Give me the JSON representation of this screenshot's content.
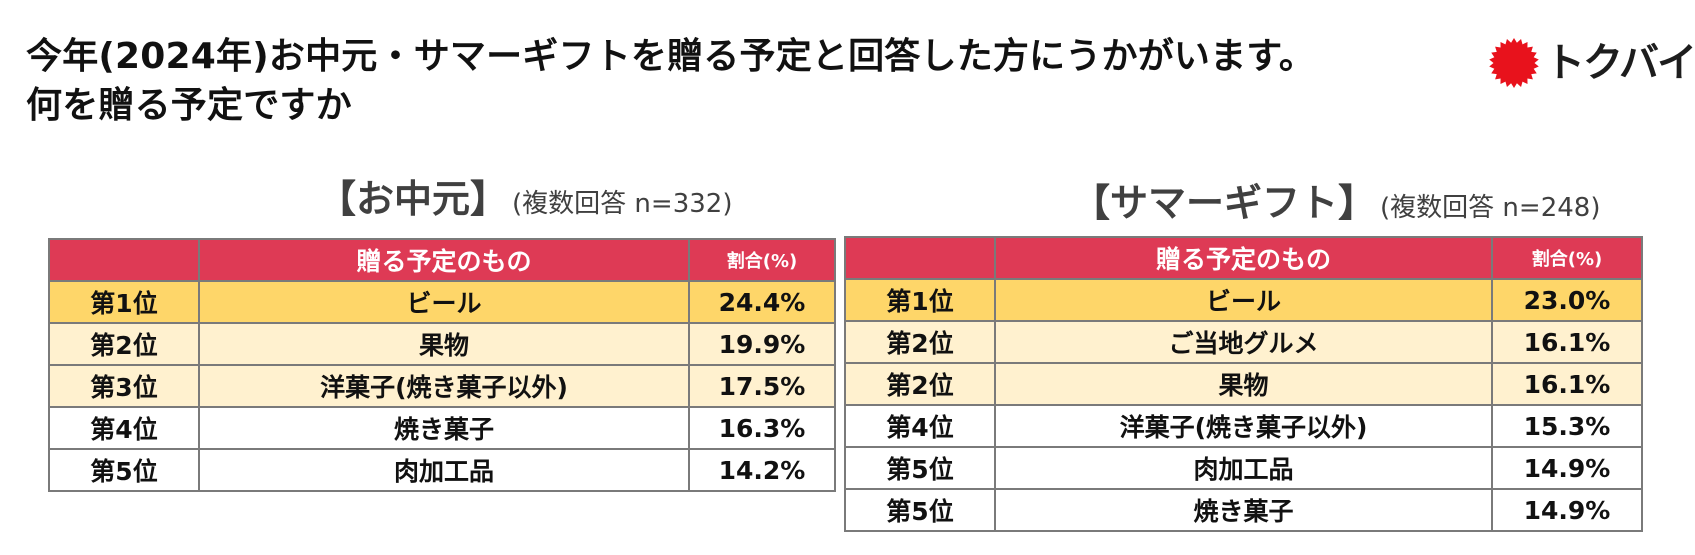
{
  "headline_line1": "今年(2024年)お中元・サマーギフトを贈る予定と回答した方にうかがいます。",
  "headline_line2": "何を贈る予定ですか",
  "logo": {
    "text": "トクバイ",
    "mark_color": "#e8121c"
  },
  "chart_data": [
    {
      "type": "table",
      "title": "【お中元】",
      "subtitle": "(複数回答 n=332)",
      "columns": [
        "",
        "贈る予定のもの",
        "割合(%)"
      ],
      "rows": [
        {
          "rank": "第1位",
          "item": "ビール",
          "pct": "24.4%"
        },
        {
          "rank": "第2位",
          "item": "果物",
          "pct": "19.9%"
        },
        {
          "rank": "第3位",
          "item": "洋菓子(焼き菓子以外)",
          "pct": "17.5%"
        },
        {
          "rank": "第4位",
          "item": "焼き菓子",
          "pct": "16.3%"
        },
        {
          "rank": "第5位",
          "item": "肉加工品",
          "pct": "14.2%"
        }
      ]
    },
    {
      "type": "table",
      "title": "【サマーギフト】",
      "subtitle": "(複数回答 n=248)",
      "columns": [
        "",
        "贈る予定のもの",
        "割合(%)"
      ],
      "rows": [
        {
          "rank": "第1位",
          "item": "ビール",
          "pct": "23.0%"
        },
        {
          "rank": "第2位",
          "item": "ご当地グルメ",
          "pct": "16.1%"
        },
        {
          "rank": "第2位",
          "item": "果物",
          "pct": "16.1%"
        },
        {
          "rank": "第4位",
          "item": "洋菓子(焼き菓子以外)",
          "pct": "15.3%"
        },
        {
          "rank": "第5位",
          "item": "肉加工品",
          "pct": "14.9%"
        },
        {
          "rank": "第5位",
          "item": "焼き菓子",
          "pct": "14.9%"
        }
      ]
    }
  ],
  "colors": {
    "header_bg": "#de3a55",
    "rank1_bg": "#fed669",
    "rank2_3_bg": "#fff1cf",
    "border": "#7a7a7a"
  }
}
